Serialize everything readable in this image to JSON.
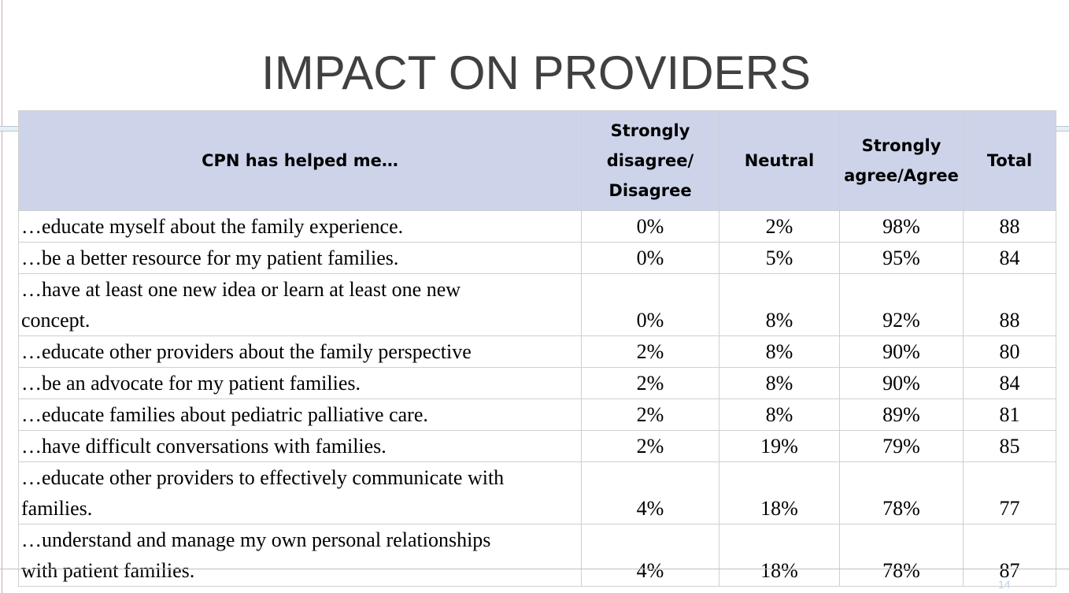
{
  "title": "IMPACT ON PROVIDERS",
  "slide_number": "14",
  "table": {
    "headers": {
      "item": "CPN has helped me…",
      "disagree_line1": "Strongly",
      "disagree_line2": "disagree/",
      "disagree_line3": "Disagree",
      "neutral": "Neutral",
      "agree_line1": "Strongly",
      "agree_line2": "agree/Agree",
      "total": "Total"
    },
    "rows": [
      {
        "item": "…educate myself about the family experience.",
        "disagree": "0%",
        "neutral": "2%",
        "agree": "98%",
        "total": "88"
      },
      {
        "item": "…be a better resource for my patient families.",
        "disagree": "0%",
        "neutral": "5%",
        "agree": "95%",
        "total": "84"
      },
      {
        "item_line1": "…have at least one new idea or learn at least one new",
        "item_line2": "concept.",
        "disagree": "0%",
        "neutral": "8%",
        "agree": "92%",
        "total": "88"
      },
      {
        "item": "…educate other providers about the family perspective",
        "disagree": "2%",
        "neutral": "8%",
        "agree": "90%",
        "total": "80"
      },
      {
        "item": "…be an advocate for my patient families.",
        "disagree": "2%",
        "neutral": "8%",
        "agree": "90%",
        "total": "84"
      },
      {
        "item": "…educate families about pediatric palliative care.",
        "disagree": "2%",
        "neutral": "8%",
        "agree": "89%",
        "total": "81"
      },
      {
        "item": "…have difficult conversations with families.",
        "disagree": "2%",
        "neutral": "19%",
        "agree": "79%",
        "total": "85"
      },
      {
        "item_line1": "…educate other providers to effectively communicate with",
        "item_line2": "families.",
        "disagree": "4%",
        "neutral": "18%",
        "agree": "78%",
        "total": "77"
      },
      {
        "item_line1": "…understand and manage my own personal relationships",
        "item_line2": "with patient families.",
        "disagree": "4%",
        "neutral": "18%",
        "agree": "78%",
        "total": "87"
      }
    ]
  }
}
